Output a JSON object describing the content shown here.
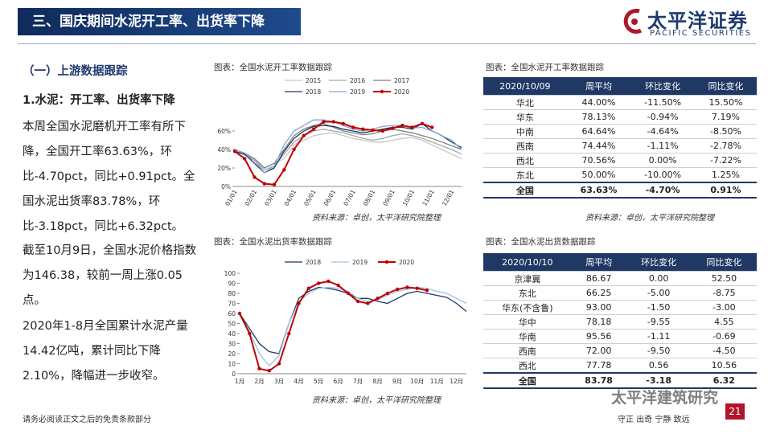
{
  "header": {
    "title": "三、国庆期间水泥开工率、出货率下降",
    "logo": "太平洋证券",
    "logo_en": "PACIFIC SECURITIES"
  },
  "left": {
    "section": "（一）上游数据跟踪",
    "subtitle": "1.水泥：开工率、出货率下降",
    "paragraphs": [
      "本周全国水泥磨机开工率有所下降，全国开工率63.63%，环比-4.70pct，同比+0.91pct。全国水泥出货率83.78%，环比-3.18pct，同比+6.32pct。",
      "截至10月9日，全国水泥价格指数为146.38，较前一周上涨0.05点。",
      "2020年1-8月全国累计水泥产量14.42亿吨，累计同比下降2.10%，降幅进一步收窄。"
    ]
  },
  "chart_data": [
    {
      "type": "line",
      "title": "图表：全国水泥开工率数据跟踪",
      "source": "资料来源：卓创，太平洋研究院整理",
      "categories": [
        "01/01",
        null,
        "02/01",
        null,
        "03/01",
        null,
        "04/01",
        null,
        "05/01",
        null,
        "06/01",
        null,
        "07/01",
        null,
        "08/01",
        null,
        "09/01",
        null,
        "10/01",
        null,
        "11/01",
        null,
        "12/01",
        null
      ],
      "ylim": [
        0,
        80
      ],
      "yticks": [
        {
          "value": 0,
          "label": "0%"
        },
        {
          "value": 20,
          "label": "20%"
        },
        {
          "value": 40,
          "label": "40%"
        },
        {
          "value": 60,
          "label": "60%"
        }
      ],
      "legend": "top",
      "series": [
        {
          "name": "2015",
          "color": "#c8c8c8",
          "values": [
            37,
            35,
            30,
            20,
            25,
            30,
            45,
            50,
            55,
            57,
            58,
            55,
            52,
            50,
            48,
            48,
            50,
            52,
            53,
            50,
            45,
            40,
            35,
            30
          ]
        },
        {
          "name": "2016",
          "color": "#a6a6a6",
          "values": [
            38,
            34,
            28,
            18,
            22,
            35,
            48,
            55,
            60,
            62,
            60,
            58,
            55,
            52,
            50,
            52,
            55,
            57,
            55,
            52,
            48,
            44,
            40,
            35
          ]
        },
        {
          "name": "2017",
          "color": "#7f7f7f",
          "values": [
            40,
            36,
            30,
            20,
            25,
            40,
            55,
            62,
            66,
            68,
            64,
            60,
            58,
            56,
            57,
            60,
            62,
            60,
            58,
            55,
            52,
            48,
            44,
            40
          ]
        },
        {
          "name": "2018",
          "color": "#1f3864",
          "values": [
            38,
            35,
            25,
            15,
            20,
            38,
            52,
            60,
            65,
            66,
            65,
            62,
            60,
            58,
            60,
            62,
            64,
            64,
            62,
            68,
            60,
            55,
            48,
            42
          ]
        },
        {
          "name": "2019",
          "color": "#7fa8d8",
          "values": [
            40,
            36,
            28,
            15,
            22,
            45,
            60,
            66,
            72,
            72,
            70,
            66,
            62,
            60,
            62,
            65,
            66,
            66,
            63,
            64,
            60,
            55,
            50,
            40
          ]
        },
        {
          "name": "2020",
          "color": "#c00000",
          "values": [
            38,
            30,
            10,
            3,
            2,
            18,
            40,
            55,
            62,
            70,
            70,
            68,
            64,
            62,
            61,
            60,
            63,
            66,
            64,
            68,
            64,
            null,
            null,
            null
          ]
        }
      ]
    },
    {
      "type": "line",
      "title": "图表：全国水泥出货率数据跟踪",
      "source": "资料来源：卓创，太平洋研究院整理",
      "categories": [
        "1月",
        null,
        "2月",
        null,
        "3月",
        null,
        "4月",
        null,
        "5月",
        null,
        "6月",
        null,
        "7月",
        null,
        "8月",
        null,
        "9月",
        null,
        "10月",
        null,
        "11月",
        null,
        "12月",
        null
      ],
      "ylim": [
        0,
        100
      ],
      "yticks": [
        0,
        10,
        20,
        30,
        40,
        50,
        60,
        70,
        80,
        90,
        100
      ],
      "legend": "top",
      "series": [
        {
          "name": "2018",
          "color": "#1f3864",
          "values": [
            60,
            45,
            30,
            22,
            20,
            50,
            75,
            82,
            86,
            85,
            83,
            80,
            75,
            75,
            72,
            70,
            75,
            80,
            82,
            80,
            78,
            76,
            70,
            62
          ]
        },
        {
          "name": "2019",
          "color": "#9dc3e6",
          "values": [
            58,
            42,
            20,
            8,
            18,
            50,
            72,
            80,
            85,
            86,
            85,
            82,
            75,
            72,
            74,
            78,
            82,
            84,
            86,
            85,
            82,
            80,
            75,
            70
          ]
        },
        {
          "name": "2020",
          "color": "#c00000",
          "values": [
            60,
            40,
            5,
            3,
            10,
            40,
            70,
            85,
            90,
            92,
            88,
            80,
            72,
            70,
            75,
            80,
            84,
            86,
            85,
            83,
            null,
            null,
            null,
            null
          ]
        }
      ]
    }
  ],
  "tables": [
    {
      "title": "图表：全国水泥开工率数据跟踪",
      "source": "资料来源：卓创，太平洋研究院整理",
      "header": [
        "2020/10/09",
        "周平均",
        "环比变化",
        "同比变化"
      ],
      "rows": [
        [
          "华北",
          "44.00%",
          "-11.50%",
          "15.50%"
        ],
        [
          "华东",
          "78.13%",
          "-0.94%",
          "7.19%"
        ],
        [
          "中南",
          "64.64%",
          "-4.64%",
          "-8.50%"
        ],
        [
          "西南",
          "74.44%",
          "-1.11%",
          "-2.78%"
        ],
        [
          "西北",
          "70.56%",
          "0.00%",
          "-7.22%"
        ],
        [
          "东北",
          "50.00%",
          "-10.00%",
          "1.25%"
        ],
        [
          "全国",
          "63.63%",
          "-4.70%",
          "0.91%"
        ]
      ]
    },
    {
      "title": "图表：全国水泥出货数据跟踪",
      "header": [
        "2020/10/10",
        "周平均",
        "环比变化",
        "同比变化"
      ],
      "rows": [
        [
          "京津冀",
          "86.67",
          "0.00",
          "52.50"
        ],
        [
          "东北",
          "66.25",
          "-5.00",
          "-8.75"
        ],
        [
          "华东(不含鲁)",
          "93.00",
          "-1.50",
          "-3.00"
        ],
        [
          "华中",
          "78.18",
          "-9.55",
          "4.55"
        ],
        [
          "华南",
          "95.56",
          "-1.11",
          "-0.69"
        ],
        [
          "西南",
          "72.00",
          "-9.50",
          "-4.50"
        ],
        [
          "西北",
          "77.78",
          "0.56",
          "10.56"
        ],
        [
          "全国",
          "83.78",
          "-3.18",
          "6.32"
        ]
      ]
    }
  ],
  "footer": {
    "disclaimer": "请务必阅读正文之后的免责条款部分",
    "motto": "守正 出奇 宁静 致远",
    "page": "21",
    "watermark": "太平洋建筑研究"
  }
}
